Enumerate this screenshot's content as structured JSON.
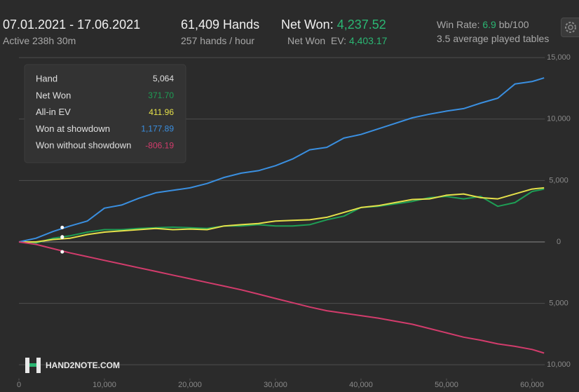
{
  "header": {
    "date_range": "07.01.2021 - 17.06.2021",
    "active": "Active 238h 30m",
    "hands": "61,409 Hands",
    "hands_rate": "257 hands / hour",
    "net_won_label": "Net Won:",
    "net_won": "4,237.52",
    "ev_label": "Net Won  EV:",
    "ev": "4,403.17",
    "winrate_label": "Win Rate:",
    "winrate": "6.9",
    "winrate_unit": "bb/100",
    "tables": "3.5 average played tables",
    "logo": "HAND2NOTE.COM"
  },
  "chart_data": {
    "type": "line",
    "x": [
      0,
      2000,
      4000,
      6000,
      8000,
      10000,
      12000,
      14000,
      16000,
      18000,
      20000,
      22000,
      24000,
      26000,
      28000,
      30000,
      32000,
      34000,
      36000,
      38000,
      40000,
      42000,
      44000,
      46000,
      48000,
      50000,
      52000,
      54000,
      56000,
      58000,
      60000,
      61409
    ],
    "series": [
      {
        "name": "Net Won",
        "color": "#1e9e55",
        "values": [
          0,
          -100,
          300,
          500,
          800,
          1000,
          1000,
          1100,
          1150,
          1200,
          1150,
          1100,
          1300,
          1300,
          1400,
          1300,
          1300,
          1400,
          1800,
          2100,
          2800,
          2900,
          3100,
          3300,
          3600,
          3700,
          3500,
          3700,
          2900,
          3200,
          4100,
          4300
        ]
      },
      {
        "name": "All-in EV",
        "color": "#e5e04a",
        "values": [
          0,
          0,
          200,
          300,
          600,
          800,
          900,
          1000,
          1100,
          1000,
          1050,
          1000,
          1300,
          1400,
          1500,
          1700,
          1750,
          1800,
          2000,
          2400,
          2800,
          2950,
          3200,
          3450,
          3500,
          3800,
          3900,
          3600,
          3500,
          3900,
          4300,
          4400
        ]
      },
      {
        "name": "Won at showdown",
        "color": "#3a8fe0",
        "values": [
          0,
          300,
          850,
          1300,
          1700,
          2750,
          3000,
          3550,
          4000,
          4200,
          4400,
          4750,
          5250,
          5600,
          5800,
          6200,
          6750,
          7500,
          7700,
          8450,
          8750,
          9200,
          9650,
          10100,
          10400,
          10650,
          10850,
          11300,
          11700,
          12850,
          13050,
          13350
        ]
      },
      {
        "name": "Won without showdown",
        "color": "#d23c6c",
        "values": [
          0,
          -200,
          -550,
          -900,
          -1200,
          -1500,
          -1800,
          -2100,
          -2400,
          -2700,
          -3000,
          -3300,
          -3600,
          -3900,
          -4250,
          -4600,
          -4950,
          -5300,
          -5600,
          -5800,
          -6000,
          -6200,
          -6450,
          -6700,
          -7050,
          -7400,
          -7750,
          -8000,
          -8300,
          -8500,
          -8750,
          -9050
        ]
      }
    ],
    "xlim": [
      0,
      61500
    ],
    "xticks": [
      0,
      {
        "value": 10000,
        "label": "10,000"
      },
      {
        "value": 20000,
        "label": "20,000"
      },
      {
        "value": 30000,
        "label": "30,000"
      },
      {
        "value": 40000,
        "label": "40,000"
      },
      {
        "value": 50000,
        "label": "50,000"
      },
      {
        "value": 60000,
        "label": "60,000"
      }
    ],
    "ylim": [
      -11000,
      15500
    ],
    "yticks": [
      {
        "value": -10000,
        "label": "10,000"
      },
      {
        "value": -5000,
        "label": "5,000"
      },
      0,
      {
        "value": 5000,
        "label": "5,000"
      },
      {
        "value": 10000,
        "label": "10,000"
      },
      {
        "value": 15000,
        "label": "15,000"
      }
    ],
    "grid": true,
    "tooltip": {
      "x_name": "Hand",
      "x": 5064,
      "x_label": "5,064",
      "values": [
        371.7,
        411.96,
        1177.89,
        -806.19
      ],
      "value_labels": [
        "371.70",
        "411.96",
        "1,177.89",
        "-806.19"
      ]
    }
  }
}
